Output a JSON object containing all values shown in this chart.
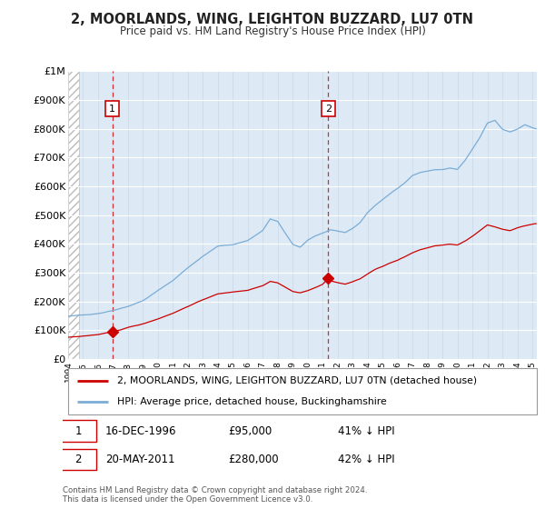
{
  "title": "2, MOORLANDS, WING, LEIGHTON BUZZARD, LU7 0TN",
  "subtitle": "Price paid vs. HM Land Registry's House Price Index (HPI)",
  "legend_line1": "2, MOORLANDS, WING, LEIGHTON BUZZARD, LU7 0TN (detached house)",
  "legend_line2": "HPI: Average price, detached house, Buckinghamshire",
  "annotation1_date": "16-DEC-1996",
  "annotation1_price": "£95,000",
  "annotation1_hpi": "41% ↓ HPI",
  "annotation2_date": "20-MAY-2011",
  "annotation2_price": "£280,000",
  "annotation2_hpi": "42% ↓ HPI",
  "footer": "Contains HM Land Registry data © Crown copyright and database right 2024.\nThis data is licensed under the Open Government Licence v3.0.",
  "sale_color": "#cc0000",
  "hpi_color": "#7aacd6",
  "background_plot": "#ddeaf5",
  "ylim": [
    0,
    1000000
  ],
  "yticks": [
    0,
    100000,
    200000,
    300000,
    400000,
    500000,
    600000,
    700000,
    800000,
    900000,
    1000000
  ],
  "ytick_labels": [
    "£0",
    "£100K",
    "£200K",
    "£300K",
    "£400K",
    "£500K",
    "£600K",
    "£700K",
    "£800K",
    "£900K",
    "£1M"
  ],
  "sale1_x": 1996.96,
  "sale1_y": 95000,
  "sale2_x": 2011.37,
  "sale2_y": 280000,
  "xlim_left": 1994.0,
  "xlim_right": 2025.3
}
